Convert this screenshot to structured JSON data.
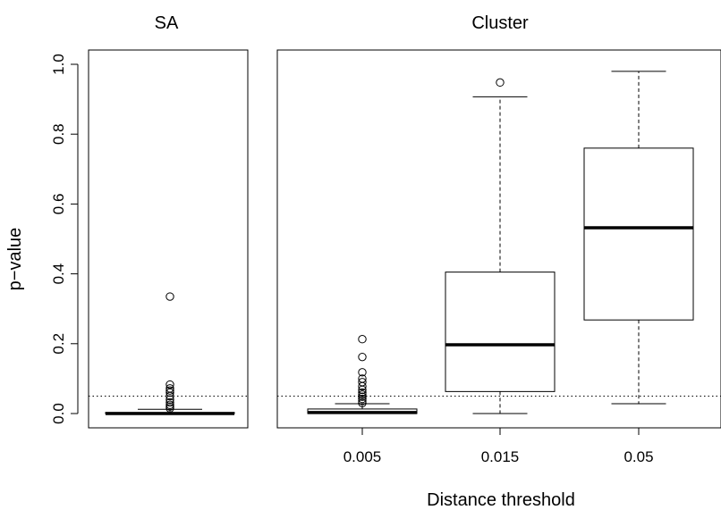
{
  "chart_data": {
    "type": "boxplot",
    "ylabel": "p−value",
    "xlabel": "Distance threshold",
    "ylim": [
      0.0,
      1.0
    ],
    "yticks": [
      "0.0",
      "0.2",
      "0.4",
      "0.6",
      "0.8",
      "1.0"
    ],
    "significance_line": 0.05,
    "panels": [
      {
        "title": "SA",
        "boxes": [
          {
            "label": "",
            "whisker_low": 0.0,
            "q1": 0.0,
            "median": 0.0,
            "q3": 0.003,
            "whisker_high": 0.012,
            "outliers": [
              0.335,
              0.083,
              0.072,
              0.066,
              0.06,
              0.05,
              0.04,
              0.032,
              0.025,
              0.02,
              0.015
            ]
          }
        ]
      },
      {
        "title": "Cluster",
        "boxes": [
          {
            "label": "0.005",
            "whisker_low": 0.0,
            "q1": 0.0,
            "median": 0.003,
            "q3": 0.013,
            "whisker_high": 0.028,
            "outliers": [
              0.213,
              0.162,
              0.118,
              0.1,
              0.09,
              0.078,
              0.068,
              0.06,
              0.054,
              0.048,
              0.042,
              0.036,
              0.03
            ]
          },
          {
            "label": "0.015",
            "whisker_low": 0.0,
            "q1": 0.063,
            "median": 0.197,
            "q3": 0.405,
            "whisker_high": 0.907,
            "outliers": [
              0.948
            ]
          },
          {
            "label": "0.05",
            "whisker_low": 0.028,
            "q1": 0.268,
            "median": 0.532,
            "q3": 0.76,
            "whisker_high": 0.98,
            "outliers": []
          }
        ]
      }
    ]
  }
}
